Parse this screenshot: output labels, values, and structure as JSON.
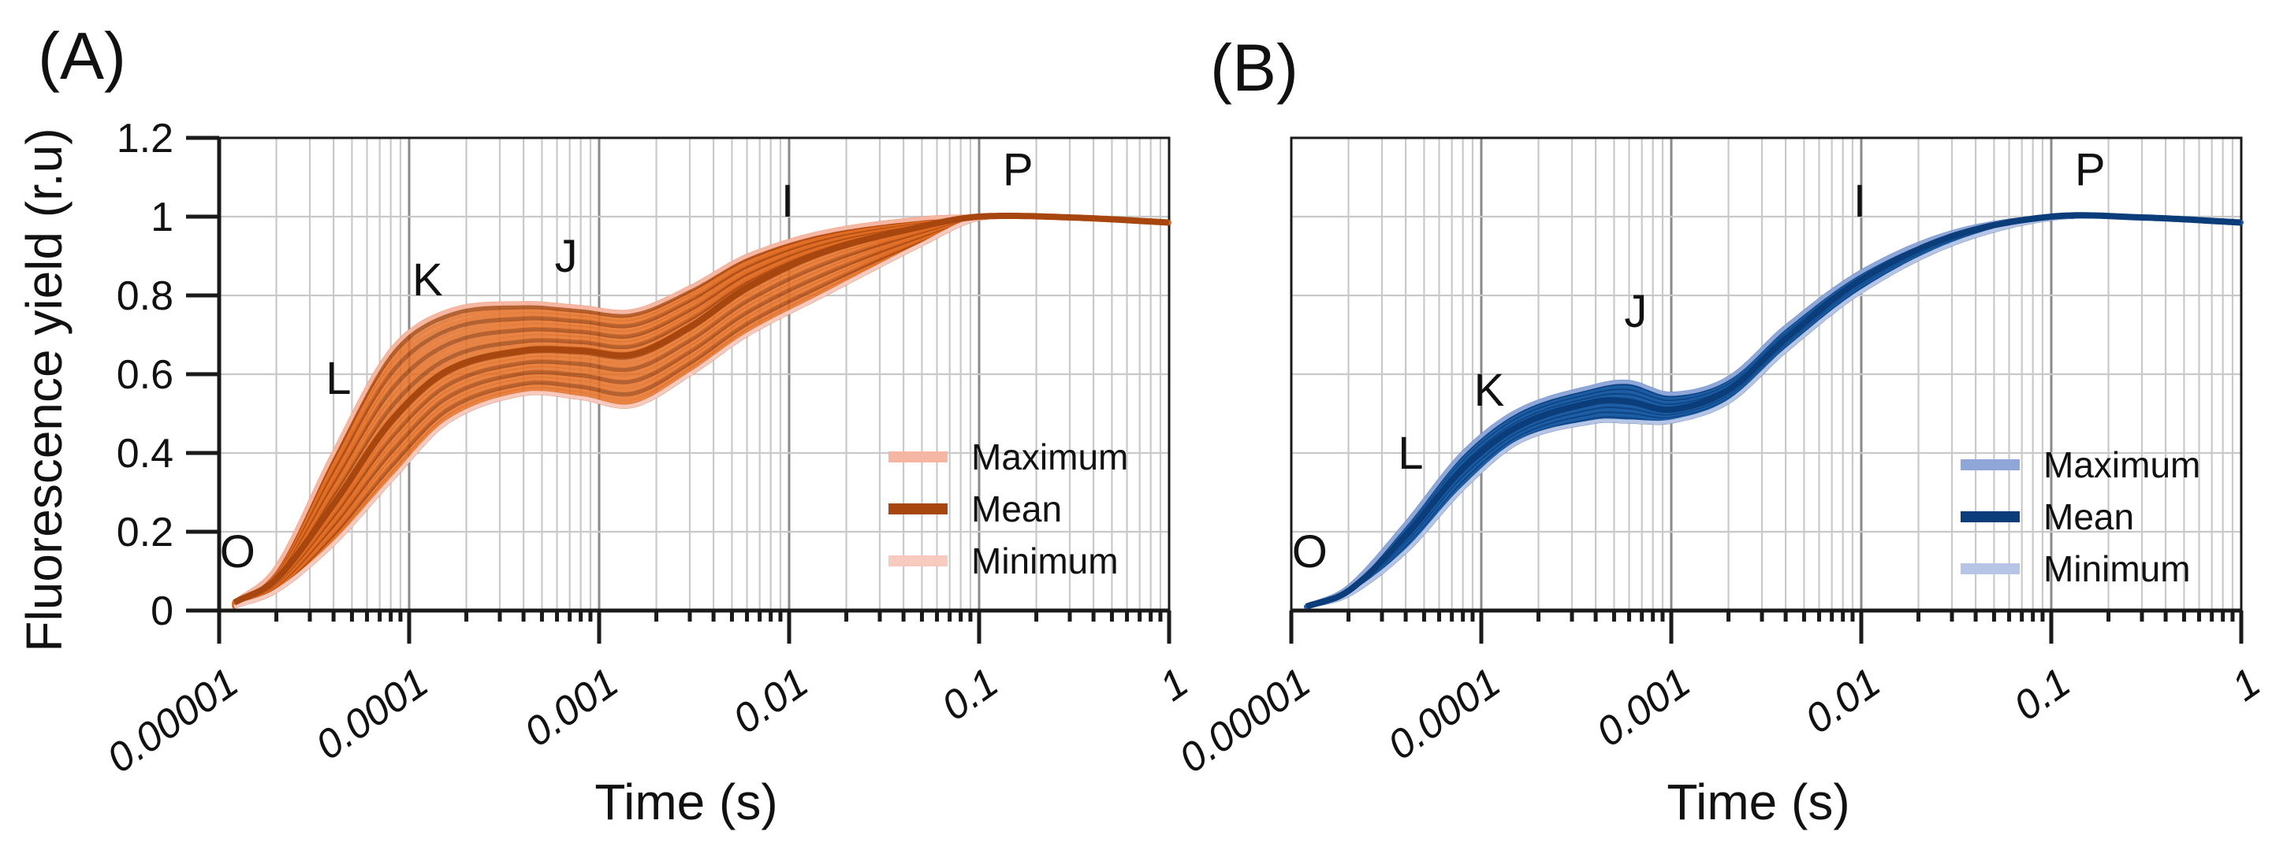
{
  "chart_data": [
    {
      "type": "line",
      "panel_label": "(A)",
      "xlabel": "Time (s)",
      "ylabel": "Fluorescence yield (r.u)",
      "x_scale": "log",
      "xlim": [
        1e-05,
        1
      ],
      "ylim": [
        0,
        1.2
      ],
      "x_ticks": [
        1e-05,
        0.0001,
        0.001,
        0.01,
        0.1,
        1
      ],
      "x_tick_labels": [
        "0.00001",
        "0.0001",
        "0.001",
        "0.01",
        "0.1",
        "1"
      ],
      "y_ticks": [
        0,
        0.2,
        0.4,
        0.6,
        0.8,
        1,
        1.2
      ],
      "y_tick_labels": [
        "0",
        "0.2",
        "0.4",
        "0.6",
        "0.8",
        "1",
        "1.2"
      ],
      "show_y_tick_labels": true,
      "grid": true,
      "legend_position": "bottom-right",
      "colors": {
        "max": "#f5b7a4",
        "mean": "#a8460f",
        "min": "#f7c9bf",
        "bundle": "#e36e25"
      },
      "phase_labels": [
        {
          "label": "O",
          "x": 1.25e-05,
          "y": 0.11
        },
        {
          "label": "L",
          "x": 4.25e-05,
          "y": 0.55
        },
        {
          "label": "K",
          "x": 0.000125,
          "y": 0.8
        },
        {
          "label": "J",
          "x": 0.00067,
          "y": 0.86
        },
        {
          "label": "I",
          "x": 0.0098,
          "y": 1.0
        },
        {
          "label": "P",
          "x": 0.16,
          "y": 1.08
        }
      ],
      "series": [
        {
          "name": "Maximum",
          "points": [
            [
              1.2e-05,
              0.02
            ],
            [
              2e-05,
              0.11
            ],
            [
              4e-05,
              0.4
            ],
            [
              8e-05,
              0.66
            ],
            [
              0.00016,
              0.76
            ],
            [
              0.0004,
              0.78
            ],
            [
              0.0008,
              0.77
            ],
            [
              0.0015,
              0.76
            ],
            [
              0.003,
              0.82
            ],
            [
              0.006,
              0.9
            ],
            [
              0.015,
              0.96
            ],
            [
              0.05,
              0.995
            ],
            [
              0.1,
              1.0
            ],
            [
              0.3,
              0.998
            ],
            [
              1,
              0.985
            ]
          ]
        },
        {
          "name": "Mean",
          "points": [
            [
              1.2e-05,
              0.02
            ],
            [
              2e-05,
              0.08
            ],
            [
              4e-05,
              0.27
            ],
            [
              8e-05,
              0.48
            ],
            [
              0.00016,
              0.61
            ],
            [
              0.0004,
              0.66
            ],
            [
              0.0008,
              0.66
            ],
            [
              0.0015,
              0.65
            ],
            [
              0.003,
              0.72
            ],
            [
              0.006,
              0.82
            ],
            [
              0.015,
              0.91
            ],
            [
              0.05,
              0.975
            ],
            [
              0.1,
              1.0
            ],
            [
              0.3,
              0.998
            ],
            [
              1,
              0.985
            ]
          ]
        },
        {
          "name": "Minimum",
          "points": [
            [
              1.2e-05,
              0.01
            ],
            [
              2e-05,
              0.05
            ],
            [
              4e-05,
              0.17
            ],
            [
              8e-05,
              0.33
            ],
            [
              0.00016,
              0.48
            ],
            [
              0.0004,
              0.55
            ],
            [
              0.0008,
              0.54
            ],
            [
              0.0015,
              0.52
            ],
            [
              0.003,
              0.6
            ],
            [
              0.006,
              0.7
            ],
            [
              0.015,
              0.8
            ],
            [
              0.05,
              0.93
            ],
            [
              0.1,
              0.995
            ],
            [
              0.3,
              0.997
            ],
            [
              1,
              0.985
            ]
          ]
        }
      ]
    },
    {
      "type": "line",
      "panel_label": "(B)",
      "xlabel": "Time (s)",
      "ylabel": "",
      "x_scale": "log",
      "xlim": [
        1e-05,
        1
      ],
      "ylim": [
        0,
        1.2
      ],
      "x_ticks": [
        1e-05,
        0.0001,
        0.001,
        0.01,
        0.1,
        1
      ],
      "x_tick_labels": [
        "0.00001",
        "0.0001",
        "0.001",
        "0.01",
        "0.1",
        "1"
      ],
      "y_ticks": [
        0,
        0.2,
        0.4,
        0.6,
        0.8,
        1,
        1.2
      ],
      "y_tick_labels": [
        "0",
        "0.2",
        "0.4",
        "0.6",
        "0.8",
        "1",
        "1.2"
      ],
      "show_y_tick_labels": false,
      "grid": true,
      "legend_position": "bottom-right",
      "colors": {
        "max": "#8fa6d8",
        "mean": "#0b3d7a",
        "min": "#b6c5e6",
        "bundle": "#1d5fa8"
      },
      "phase_labels": [
        {
          "label": "O",
          "x": 1.25e-05,
          "y": 0.11
        },
        {
          "label": "L",
          "x": 4.25e-05,
          "y": 0.36
        },
        {
          "label": "K",
          "x": 0.00011,
          "y": 0.52
        },
        {
          "label": "J",
          "x": 0.00065,
          "y": 0.72
        },
        {
          "label": "I",
          "x": 0.0098,
          "y": 1.0
        },
        {
          "label": "P",
          "x": 0.16,
          "y": 1.08
        }
      ],
      "series": [
        {
          "name": "Maximum",
          "points": [
            [
              1.2e-05,
              0.01
            ],
            [
              2e-05,
              0.06
            ],
            [
              4e-05,
              0.22
            ],
            [
              8e-05,
              0.4
            ],
            [
              0.00016,
              0.51
            ],
            [
              0.0004,
              0.57
            ],
            [
              0.0006,
              0.58
            ],
            [
              0.001,
              0.55
            ],
            [
              0.002,
              0.59
            ],
            [
              0.004,
              0.72
            ],
            [
              0.01,
              0.86
            ],
            [
              0.03,
              0.96
            ],
            [
              0.1,
              1.0
            ],
            [
              0.3,
              0.998
            ],
            [
              1,
              0.985
            ]
          ]
        },
        {
          "name": "Mean",
          "points": [
            [
              1.2e-05,
              0.01
            ],
            [
              2e-05,
              0.05
            ],
            [
              4e-05,
              0.19
            ],
            [
              8e-05,
              0.36
            ],
            [
              0.00016,
              0.47
            ],
            [
              0.0004,
              0.53
            ],
            [
              0.0006,
              0.53
            ],
            [
              0.001,
              0.51
            ],
            [
              0.002,
              0.56
            ],
            [
              0.004,
              0.69
            ],
            [
              0.01,
              0.84
            ],
            [
              0.03,
              0.95
            ],
            [
              0.1,
              1.0
            ],
            [
              0.3,
              0.998
            ],
            [
              1,
              0.985
            ]
          ]
        },
        {
          "name": "Minimum",
          "points": [
            [
              1.2e-05,
              0.01
            ],
            [
              2e-05,
              0.04
            ],
            [
              4e-05,
              0.15
            ],
            [
              8e-05,
              0.31
            ],
            [
              0.00016,
              0.43
            ],
            [
              0.0004,
              0.48
            ],
            [
              0.0006,
              0.48
            ],
            [
              0.001,
              0.48
            ],
            [
              0.002,
              0.53
            ],
            [
              0.004,
              0.66
            ],
            [
              0.01,
              0.81
            ],
            [
              0.03,
              0.93
            ],
            [
              0.1,
              0.995
            ],
            [
              0.3,
              0.997
            ],
            [
              1,
              0.985
            ]
          ]
        }
      ]
    }
  ]
}
